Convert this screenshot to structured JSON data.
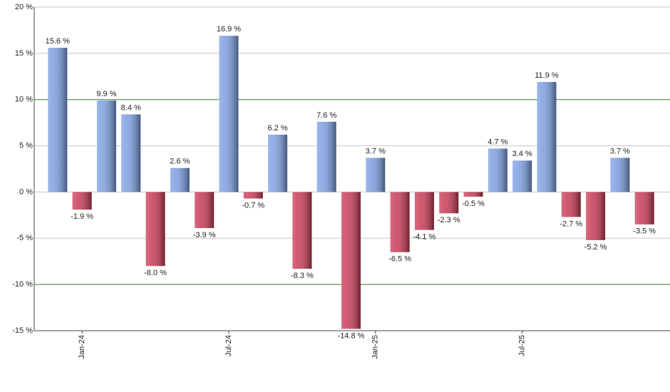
{
  "chart_data": {
    "type": "bar",
    "categories": [
      null,
      "Jan-24",
      null,
      null,
      null,
      null,
      null,
      "Jul-24",
      null,
      null,
      null,
      null,
      null,
      "Jan-25",
      null,
      null,
      null,
      null,
      null,
      "Jul-25",
      null,
      null,
      null,
      null,
      null
    ],
    "values": [
      15.6,
      -1.9,
      9.9,
      8.4,
      -8.0,
      2.6,
      -3.9,
      16.9,
      -0.7,
      6.2,
      -8.3,
      7.6,
      -14.8,
      3.7,
      -6.5,
      -4.1,
      -2.3,
      -0.5,
      4.7,
      3.4,
      11.9,
      -2.7,
      -5.2,
      3.7,
      -3.5
    ],
    "value_labels": [
      "15.6 %",
      "-1.9 %",
      "9.9 %",
      "8.4 %",
      "-8.0 %",
      "2.6 %",
      "-3.9 %",
      "16.9 %",
      "-0.7 %",
      "6.2 %",
      "-8.3 %",
      "7.6 %",
      "-14.8 %",
      "3.7 %",
      "-6.5 %",
      "-4.1 %",
      "-2.3 %",
      "-0.5 %",
      "4.7 %",
      "3.4 %",
      "11.9 %",
      "-2.7 %",
      "-5.2 %",
      "3.7 %",
      "-3.5 %"
    ],
    "positive_color": "#7b9ee0",
    "negative_color": "#c93a55",
    "ylim": [
      -15,
      20
    ],
    "yticks": [
      {
        "value": -15,
        "label": "-15 %"
      },
      {
        "value": -10,
        "label": "-10 %",
        "color": "#2e7d32"
      },
      {
        "value": -5,
        "label": "-5 %"
      },
      {
        "value": 0,
        "label": "0 %"
      },
      {
        "value": 5,
        "label": "5 %"
      },
      {
        "value": 10,
        "label": "10 %",
        "color": "#2e7d32"
      },
      {
        "value": 15,
        "label": "15 %"
      },
      {
        "value": 20,
        "label": "20 %"
      }
    ],
    "grid": true
  }
}
